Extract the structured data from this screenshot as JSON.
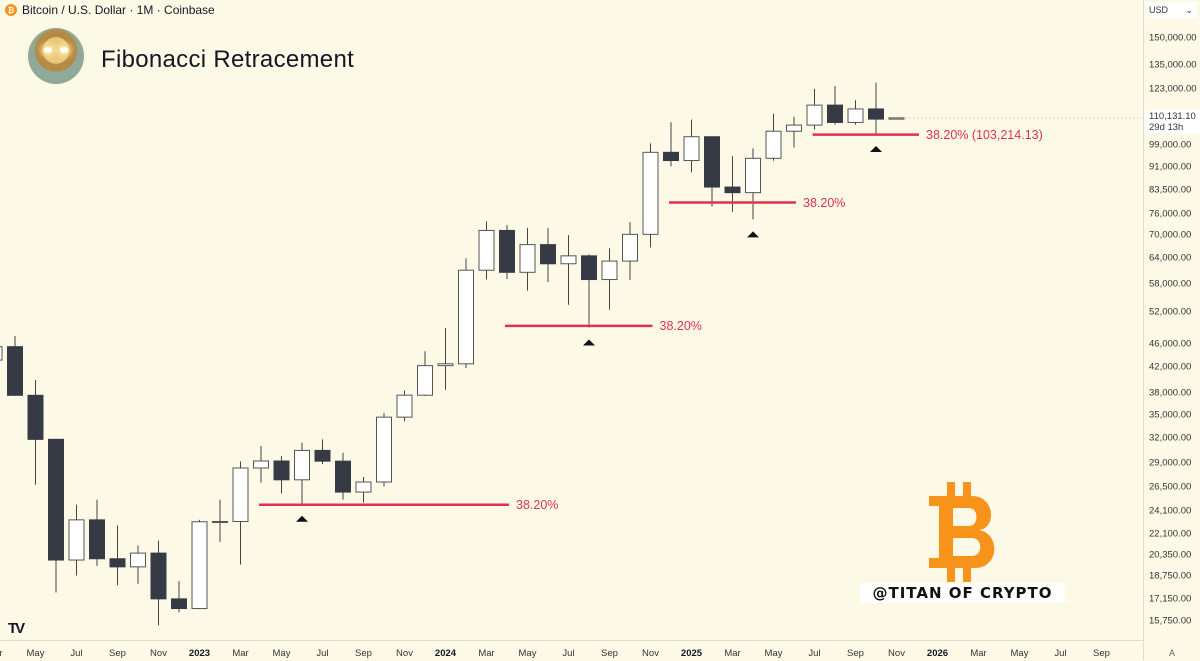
{
  "header": {
    "symbol": "Bitcoin / U.S. Dollar · 1M · Coinbase",
    "coin_icon": "₿"
  },
  "title": "Fibonacci Retracement",
  "currency_select": "USD",
  "current_price": {
    "value": "110,131.10",
    "countdown": "29d 13h"
  },
  "watermark": {
    "handle": "@TITAN OF CRYPTO",
    "logo": "bitcoin-logo"
  },
  "auto_label": "A",
  "colors": {
    "background": "#fdf9e7",
    "bull_body": "#ffffff",
    "bear_body": "#363a45",
    "wick": "#444",
    "fib": "#e0314f",
    "btc": "#f7931a"
  },
  "chart_data": {
    "type": "candlestick",
    "title": "Fibonacci Retracement",
    "scale": "log",
    "ylim": [
      15000,
      170000
    ],
    "price_ticks": [
      150000,
      135000,
      123000,
      99000,
      91000,
      83500,
      76000,
      70000,
      64000,
      58000,
      52000,
      46000,
      42000,
      38000,
      35000,
      32000,
      29000,
      26500,
      24100,
      22100,
      20350,
      18750,
      17150,
      15750
    ],
    "price_tick_labels": [
      "150,000.00",
      "135,000.00",
      "123,000.00",
      "99,000.00",
      "91,000.00",
      "83,500.00",
      "76,000.00",
      "70,000.00",
      "64,000.00",
      "58,000.00",
      "52,000.00",
      "46,000.00",
      "42,000.00",
      "38,000.00",
      "35,000.00",
      "32,000.00",
      "29,000.00",
      "26,500.00",
      "24,100.00",
      "22,100.00",
      "20,350.00",
      "18,750.00",
      "17,150.00",
      "15,750.00"
    ],
    "time_labels": [
      {
        "m": 0,
        "t": "Mar"
      },
      {
        "m": 2,
        "t": "May"
      },
      {
        "m": 4,
        "t": "Jul"
      },
      {
        "m": 6,
        "t": "Sep"
      },
      {
        "m": 8,
        "t": "Nov"
      },
      {
        "m": 10,
        "t": "2023",
        "year": true
      },
      {
        "m": 12,
        "t": "Mar"
      },
      {
        "m": 14,
        "t": "May"
      },
      {
        "m": 16,
        "t": "Jul"
      },
      {
        "m": 18,
        "t": "Sep"
      },
      {
        "m": 20,
        "t": "Nov"
      },
      {
        "m": 22,
        "t": "2024",
        "year": true
      },
      {
        "m": 24,
        "t": "Mar"
      },
      {
        "m": 26,
        "t": "May"
      },
      {
        "m": 28,
        "t": "Jul"
      },
      {
        "m": 30,
        "t": "Sep"
      },
      {
        "m": 32,
        "t": "Nov"
      },
      {
        "m": 34,
        "t": "2025",
        "year": true
      },
      {
        "m": 36,
        "t": "Mar"
      },
      {
        "m": 38,
        "t": "May"
      },
      {
        "m": 40,
        "t": "Jul"
      },
      {
        "m": 42,
        "t": "Sep"
      },
      {
        "m": 44,
        "t": "Nov"
      },
      {
        "m": 46,
        "t": "2026",
        "year": true
      },
      {
        "m": 48,
        "t": "Mar"
      },
      {
        "m": 50,
        "t": "May"
      },
      {
        "m": 52,
        "t": "Jul"
      },
      {
        "m": 54,
        "t": "Sep"
      }
    ],
    "candles": [
      {
        "d": "2022-03",
        "o": 43200,
        "h": 48200,
        "l": 37200,
        "c": 45500
      },
      {
        "d": "2022-04",
        "o": 45500,
        "h": 47400,
        "l": 37600,
        "c": 37700
      },
      {
        "d": "2022-05",
        "o": 37700,
        "h": 40000,
        "l": 26700,
        "c": 31800
      },
      {
        "d": "2022-06",
        "o": 31800,
        "h": 31900,
        "l": 17600,
        "c": 19950
      },
      {
        "d": "2022-07",
        "o": 19950,
        "h": 24700,
        "l": 18800,
        "c": 23300
      },
      {
        "d": "2022-08",
        "o": 23300,
        "h": 25200,
        "l": 19500,
        "c": 20050
      },
      {
        "d": "2022-09",
        "o": 20050,
        "h": 22800,
        "l": 18100,
        "c": 19430
      },
      {
        "d": "2022-10",
        "o": 19430,
        "h": 21100,
        "l": 18200,
        "c": 20490
      },
      {
        "d": "2022-11",
        "o": 20490,
        "h": 21500,
        "l": 15500,
        "c": 17170
      },
      {
        "d": "2022-12",
        "o": 17170,
        "h": 18400,
        "l": 16300,
        "c": 16540
      },
      {
        "d": "2023-01",
        "o": 16540,
        "h": 23300,
        "l": 16500,
        "c": 23130
      },
      {
        "d": "2023-02",
        "o": 23130,
        "h": 25200,
        "l": 21400,
        "c": 23150
      },
      {
        "d": "2023-03",
        "o": 23150,
        "h": 29200,
        "l": 19600,
        "c": 28470
      },
      {
        "d": "2023-04",
        "o": 28470,
        "h": 31000,
        "l": 26900,
        "c": 29250
      },
      {
        "d": "2023-05",
        "o": 29250,
        "h": 29800,
        "l": 25800,
        "c": 27200
      },
      {
        "d": "2023-06",
        "o": 27200,
        "h": 31400,
        "l": 24800,
        "c": 30470
      },
      {
        "d": "2023-07",
        "o": 30470,
        "h": 31800,
        "l": 28900,
        "c": 29230
      },
      {
        "d": "2023-08",
        "o": 29230,
        "h": 30200,
        "l": 25200,
        "c": 25940
      },
      {
        "d": "2023-09",
        "o": 25940,
        "h": 27500,
        "l": 24900,
        "c": 26970
      },
      {
        "d": "2023-10",
        "o": 26970,
        "h": 35200,
        "l": 26500,
        "c": 34650
      },
      {
        "d": "2023-11",
        "o": 34650,
        "h": 38400,
        "l": 34100,
        "c": 37720
      },
      {
        "d": "2023-12",
        "o": 37720,
        "h": 44700,
        "l": 37600,
        "c": 42280
      },
      {
        "d": "2024-01",
        "o": 42280,
        "h": 48900,
        "l": 38500,
        "c": 42580
      },
      {
        "d": "2024-02",
        "o": 42580,
        "h": 64000,
        "l": 41900,
        "c": 61130
      },
      {
        "d": "2024-03",
        "o": 61130,
        "h": 73800,
        "l": 59000,
        "c": 71290
      },
      {
        "d": "2024-04",
        "o": 71290,
        "h": 72800,
        "l": 59100,
        "c": 60640
      },
      {
        "d": "2024-05",
        "o": 60640,
        "h": 72000,
        "l": 56500,
        "c": 67490
      },
      {
        "d": "2024-06",
        "o": 67490,
        "h": 72000,
        "l": 58400,
        "c": 62680
      },
      {
        "d": "2024-07",
        "o": 62680,
        "h": 70000,
        "l": 53500,
        "c": 64620
      },
      {
        "d": "2024-08",
        "o": 64620,
        "h": 65000,
        "l": 49000,
        "c": 58970
      },
      {
        "d": "2024-09",
        "o": 58970,
        "h": 66500,
        "l": 52500,
        "c": 63330
      },
      {
        "d": "2024-10",
        "o": 63330,
        "h": 73600,
        "l": 58900,
        "c": 70220
      },
      {
        "d": "2024-11",
        "o": 70220,
        "h": 99800,
        "l": 66800,
        "c": 96400
      },
      {
        "d": "2024-12",
        "o": 96400,
        "h": 108300,
        "l": 91300,
        "c": 93400
      },
      {
        "d": "2025-01",
        "o": 93400,
        "h": 109400,
        "l": 89200,
        "c": 102400
      },
      {
        "d": "2025-02",
        "o": 102400,
        "h": 102500,
        "l": 78200,
        "c": 84300
      },
      {
        "d": "2025-03",
        "o": 84300,
        "h": 95000,
        "l": 76600,
        "c": 82500
      },
      {
        "d": "2025-04",
        "o": 82500,
        "h": 97900,
        "l": 74400,
        "c": 94200
      },
      {
        "d": "2025-05",
        "o": 94200,
        "h": 111900,
        "l": 93300,
        "c": 104600
      },
      {
        "d": "2025-06",
        "o": 104600,
        "h": 110600,
        "l": 98200,
        "c": 107100
      },
      {
        "d": "2025-07",
        "o": 107100,
        "h": 123200,
        "l": 105300,
        "c": 115700
      },
      {
        "d": "2025-08",
        "o": 115700,
        "h": 124500,
        "l": 107300,
        "c": 108200
      },
      {
        "d": "2025-09",
        "o": 108200,
        "h": 117900,
        "l": 107300,
        "c": 114000
      },
      {
        "d": "2025-10",
        "o": 114000,
        "h": 126200,
        "l": 103500,
        "c": 109600
      },
      {
        "d": "2025-11",
        "o": 109600,
        "h": 110300,
        "l": 109700,
        "c": 110131
      }
    ],
    "fib_levels": [
      {
        "label": "38.20%",
        "price": 24700,
        "from": "2023-04",
        "to": "2024-04"
      },
      {
        "label": "38.20%",
        "price": 49300,
        "from": "2024-04",
        "to": "2024-11"
      },
      {
        "label": "38.20%",
        "price": 79400,
        "from": "2024-12",
        "to": "2025-06"
      },
      {
        "label": "38.20% (103,214.13)",
        "price": 103214.13,
        "from": "2025-07",
        "to": "2025-12"
      }
    ],
    "markers": [
      {
        "d": "2023-06",
        "type": "triangle-up"
      },
      {
        "d": "2024-08",
        "type": "triangle-up"
      },
      {
        "d": "2025-04",
        "type": "triangle-up"
      },
      {
        "d": "2025-10",
        "type": "triangle-up"
      }
    ]
  }
}
